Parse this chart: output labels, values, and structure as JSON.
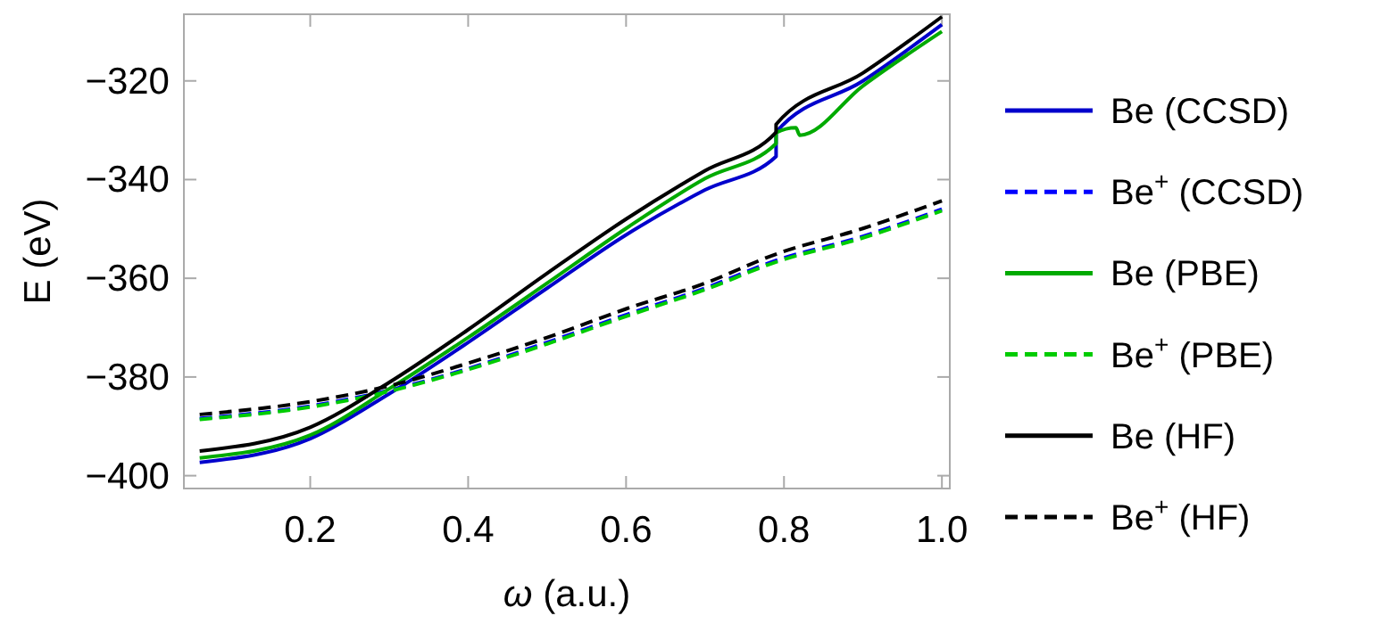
{
  "chart_data": {
    "type": "line",
    "xlabel": "ω (a.u.)",
    "ylabel": "E (eV)",
    "xlim": [
      0.04,
      1.01
    ],
    "ylim": [
      -402.6,
      -306.5
    ],
    "xticks": [
      0.2,
      0.4,
      0.6,
      0.8,
      {
        "value": 1.0,
        "label": "1.0"
      }
    ],
    "yticks": [
      -400,
      -380,
      -360,
      -340,
      -320
    ],
    "grid": false,
    "legend": "right",
    "series": [
      {
        "name": "Be (CCSD)",
        "color": "#0000cc",
        "line_style": "solid",
        "x": [
          0.06,
          0.2,
          0.3,
          0.4,
          0.5,
          0.6,
          0.7,
          0.79,
          0.79,
          0.9,
          1.0
        ],
        "values": [
          -397.3,
          -392.5,
          -383.4,
          -373,
          -362,
          -351.2,
          -342.1,
          -335.3,
          -330.4,
          -320,
          -308.6
        ]
      },
      {
        "name": "Be$^{+}$ (CCSD)",
        "color": "#0000ff",
        "line_style": "dashed",
        "x": [
          0.06,
          0.2,
          0.3,
          0.4,
          0.5,
          0.6,
          0.7,
          0.79,
          0.9,
          1.0
        ],
        "values": [
          -388.4,
          -385.9,
          -382.7,
          -378.3,
          -373,
          -367.4,
          -362,
          -356.4,
          -351.5,
          -346
        ]
      },
      {
        "name": "Be (PBE)",
        "color": "#00aa00",
        "line_style": "solid",
        "x": [
          0.06,
          0.2,
          0.3,
          0.4,
          0.5,
          0.6,
          0.7,
          0.79,
          0.79,
          0.815,
          0.82,
          0.9,
          1.0
        ],
        "values": [
          -396.4,
          -391.8,
          -382.4,
          -372,
          -361,
          -349.9,
          -339.8,
          -332.7,
          -330.5,
          -329.5,
          -331,
          -321,
          -310
        ]
      },
      {
        "name": "Be$^{+}$ (PBE)",
        "color": "#00cc00",
        "line_style": "dashed",
        "x": [
          0.06,
          0.2,
          0.3,
          0.4,
          0.5,
          0.6,
          0.7,
          0.79,
          0.9,
          1.0
        ],
        "values": [
          -388.6,
          -386.1,
          -382.9,
          -378.5,
          -373.3,
          -367.7,
          -362.3,
          -356.7,
          -351.8,
          -346.3
        ]
      },
      {
        "name": "Be (HF)",
        "color": "#000000",
        "line_style": "solid",
        "x": [
          0.06,
          0.2,
          0.3,
          0.4,
          0.5,
          0.6,
          0.7,
          0.79,
          0.79,
          0.9,
          1.0
        ],
        "values": [
          -395,
          -390.2,
          -381.1,
          -370.4,
          -359,
          -348,
          -338.2,
          -330.4,
          -328.8,
          -318.4,
          -307
        ]
      },
      {
        "name": "Be$^{+}$ (HF)",
        "color": "#000000",
        "line_style": "dashed",
        "x": [
          0.06,
          0.2,
          0.3,
          0.4,
          0.5,
          0.6,
          0.7,
          0.79,
          0.9,
          1.0
        ],
        "values": [
          -387.6,
          -385,
          -381.8,
          -377.2,
          -372,
          -366.2,
          -361,
          -355.1,
          -349.9,
          -344.3
        ]
      }
    ]
  }
}
